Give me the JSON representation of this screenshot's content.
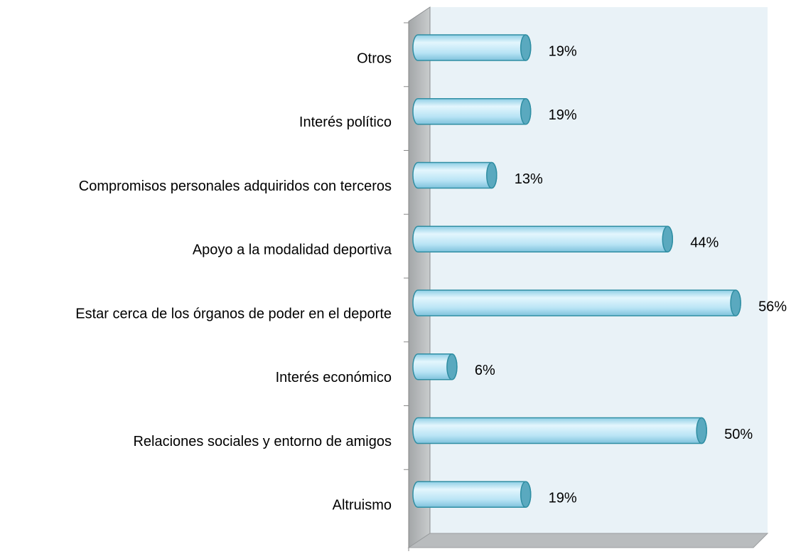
{
  "chart_data": {
    "type": "bar",
    "orientation": "horizontal",
    "categories": [
      "Otros",
      "Interés político",
      "Compromisos personales adquiridos con terceros",
      "Apoyo a la modalidad deportiva",
      "Estar cerca de los órganos de poder en el deporte",
      "Interés económico",
      "Relaciones sociales y entorno de amigos",
      "Altruismo"
    ],
    "values": [
      19,
      19,
      13,
      44,
      56,
      6,
      50,
      19
    ],
    "value_labels": [
      "19%",
      "19%",
      "13%",
      "44%",
      "56%",
      "6%",
      "50%",
      "19%"
    ],
    "color": "#b9e4f5",
    "xlim": [
      0,
      60
    ]
  }
}
